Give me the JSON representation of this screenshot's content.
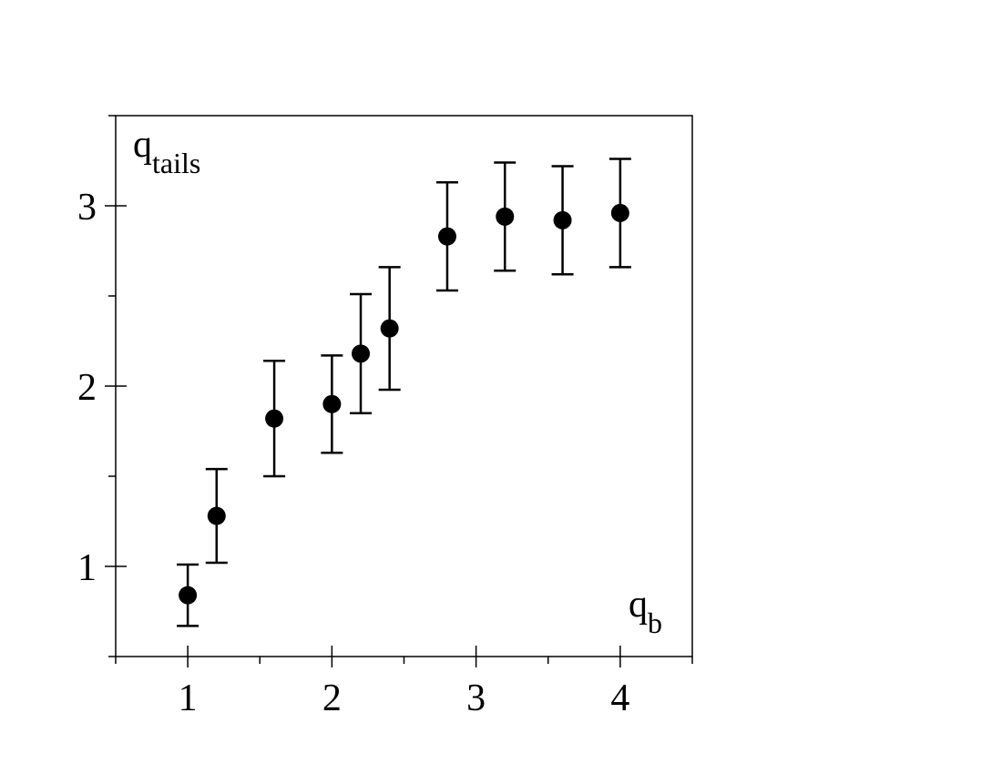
{
  "chart_data": {
    "type": "scatter",
    "ylabel": "q",
    "ylabel_subscript": "tails",
    "xlabel": "q",
    "xlabel_subscript": "b",
    "x": [
      1.0,
      1.2,
      1.6,
      2.0,
      2.2,
      2.4,
      2.8,
      3.2,
      3.6,
      4.0
    ],
    "y": [
      0.84,
      1.28,
      1.82,
      1.9,
      2.18,
      2.32,
      2.83,
      2.94,
      2.92,
      2.96
    ],
    "errors": [
      0.17,
      0.26,
      0.32,
      0.27,
      0.33,
      0.34,
      0.3,
      0.3,
      0.3,
      0.3
    ],
    "color": "#000000",
    "xlim": [
      0.5,
      4.5
    ],
    "ylim": [
      0.5,
      3.5
    ],
    "xticks": [
      1,
      2,
      3,
      4
    ],
    "yticks": [
      1,
      2,
      3
    ],
    "xminorticks": [
      0.5,
      1.5,
      2.5,
      3.5,
      4.5
    ],
    "yminorticks": [
      0.5,
      1.5,
      2.5,
      3.5
    ],
    "grid": false
  }
}
